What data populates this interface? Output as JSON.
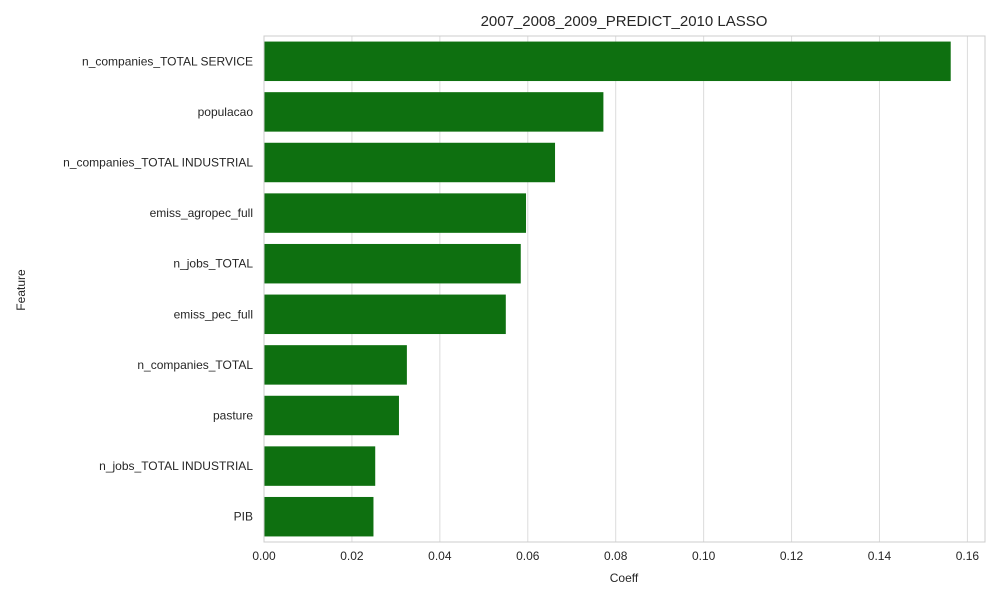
{
  "chart_data": {
    "type": "bar",
    "orientation": "horizontal",
    "title": "2007_2008_2009_PREDICT_2010 LASSO",
    "xlabel": "Coeff",
    "ylabel": "Feature",
    "categories": [
      "n_companies_TOTAL SERVICE",
      "populacao",
      "n_companies_TOTAL INDUSTRIAL",
      "emiss_agropec_full",
      "n_jobs_TOTAL",
      "emiss_pec_full",
      "n_companies_TOTAL",
      "pasture",
      "n_jobs_TOTAL INDUSTRIAL",
      "PIB"
    ],
    "values": [
      0.1562,
      0.0772,
      0.0662,
      0.0596,
      0.0584,
      0.055,
      0.0325,
      0.0307,
      0.0253,
      0.0249
    ],
    "xlim": [
      0,
      0.164
    ],
    "xticks": [
      0.0,
      0.02,
      0.04,
      0.06,
      0.08,
      0.1,
      0.12,
      0.14,
      0.16
    ],
    "xtick_labels": [
      "0.00",
      "0.02",
      "0.04",
      "0.06",
      "0.08",
      "0.10",
      "0.12",
      "0.14",
      "0.16"
    ],
    "grid": "vertical",
    "bar_color": "#0e7010",
    "grid_color": "#dcdcdc",
    "spine_color": "#cccccc"
  }
}
